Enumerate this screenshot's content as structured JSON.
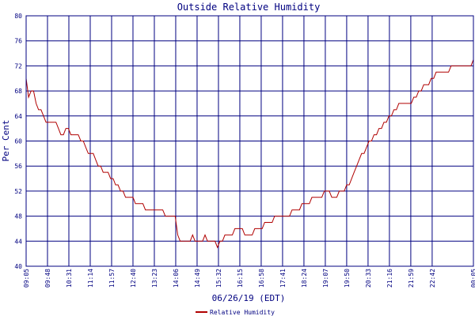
{
  "chart_data": {
    "type": "line",
    "title": "Outside Relative Humidity",
    "xlabel": "06/26/19 (EDT)",
    "ylabel": "Per Cent",
    "ylim": [
      40,
      80
    ],
    "yticks": [
      40,
      44,
      48,
      52,
      56,
      60,
      64,
      68,
      72,
      76,
      80
    ],
    "xlim": [
      "09:05",
      "00:05"
    ],
    "xticks": [
      "09:05",
      "09:48",
      "10:31",
      "11:14",
      "11:57",
      "12:40",
      "13:23",
      "14:06",
      "14:49",
      "15:32",
      "16:15",
      "16:58",
      "17:41",
      "18:24",
      "19:07",
      "19:50",
      "20:33",
      "21:16",
      "21:59",
      "22:42",
      "00:05"
    ],
    "grid": true,
    "legend": "bottom-center",
    "colors": {
      "series": "#b00000",
      "grid": "#000080",
      "text": "#000080"
    },
    "series": [
      {
        "name": "Relative Humidity",
        "x": [
          "09:05",
          "09:10",
          "09:15",
          "09:20",
          "09:25",
          "09:30",
          "09:35",
          "09:40",
          "09:45",
          "09:50",
          "09:55",
          "10:00",
          "10:05",
          "10:10",
          "10:15",
          "10:20",
          "10:25",
          "10:30",
          "10:35",
          "10:40",
          "10:45",
          "10:50",
          "10:55",
          "11:00",
          "11:05",
          "11:10",
          "11:15",
          "11:20",
          "11:25",
          "11:30",
          "11:35",
          "11:40",
          "11:45",
          "11:50",
          "11:55",
          "12:00",
          "12:05",
          "12:10",
          "12:15",
          "12:20",
          "12:25",
          "12:30",
          "12:35",
          "12:40",
          "12:45",
          "12:50",
          "12:55",
          "13:00",
          "13:05",
          "13:10",
          "13:15",
          "13:20",
          "13:25",
          "13:30",
          "13:35",
          "13:40",
          "13:45",
          "13:50",
          "13:55",
          "14:00",
          "14:05",
          "14:10",
          "14:15",
          "14:20",
          "14:25",
          "14:30",
          "14:35",
          "14:40",
          "14:45",
          "14:50",
          "14:55",
          "15:00",
          "15:05",
          "15:10",
          "15:15",
          "15:20",
          "15:25",
          "15:30",
          "15:35",
          "15:40",
          "15:45",
          "15:50",
          "15:55",
          "16:00",
          "16:05",
          "16:10",
          "16:15",
          "16:20",
          "16:25",
          "16:30",
          "16:35",
          "16:40",
          "16:45",
          "16:50",
          "16:55",
          "17:00",
          "17:05",
          "17:10",
          "17:15",
          "17:20",
          "17:25",
          "17:30",
          "17:35",
          "17:40",
          "17:45",
          "17:50",
          "17:55",
          "18:00",
          "18:05",
          "18:10",
          "18:15",
          "18:20",
          "18:25",
          "18:30",
          "18:35",
          "18:40",
          "18:45",
          "18:50",
          "18:55",
          "19:00",
          "19:05",
          "19:10",
          "19:15",
          "19:20",
          "19:25",
          "19:30",
          "19:35",
          "19:40",
          "19:45",
          "19:50",
          "19:55",
          "20:00",
          "20:05",
          "20:10",
          "20:15",
          "20:20",
          "20:25",
          "20:30",
          "20:35",
          "20:40",
          "20:45",
          "20:50",
          "20:55",
          "21:00",
          "21:05",
          "21:10",
          "21:15",
          "21:20",
          "21:25",
          "21:30",
          "21:35",
          "21:40",
          "21:45",
          "21:50",
          "21:55",
          "22:00",
          "22:05",
          "22:10",
          "22:15",
          "22:20",
          "22:25",
          "22:30",
          "22:35",
          "22:40",
          "22:45",
          "22:50",
          "22:55",
          "23:00",
          "23:05",
          "23:10",
          "23:15",
          "23:20",
          "23:25",
          "23:30",
          "23:35",
          "23:40",
          "23:45",
          "23:50",
          "23:55",
          "00:00",
          "00:05"
        ],
        "values": [
          70,
          67,
          68,
          68,
          66,
          65,
          65,
          64,
          63,
          63,
          63,
          63,
          63,
          62,
          61,
          61,
          62,
          62,
          61,
          61,
          61,
          61,
          60,
          60,
          59,
          58,
          58,
          58,
          57,
          56,
          56,
          55,
          55,
          55,
          54,
          54,
          53,
          53,
          52,
          52,
          51,
          51,
          51,
          51,
          50,
          50,
          50,
          50,
          49,
          49,
          49,
          49,
          49,
          49,
          49,
          49,
          48,
          48,
          48,
          48,
          48,
          45,
          44,
          44,
          44,
          44,
          44,
          45,
          44,
          44,
          44,
          44,
          45,
          44,
          44,
          44,
          44,
          43,
          44,
          44,
          45,
          45,
          45,
          45,
          46,
          46,
          46,
          46,
          45,
          45,
          45,
          45,
          46,
          46,
          46,
          46,
          47,
          47,
          47,
          47,
          48,
          48,
          48,
          48,
          48,
          48,
          48,
          49,
          49,
          49,
          49,
          50,
          50,
          50,
          50,
          51,
          51,
          51,
          51,
          51,
          52,
          52,
          52,
          51,
          51,
          51,
          52,
          52,
          52,
          53,
          53,
          54,
          55,
          56,
          57,
          58,
          58,
          59,
          60,
          60,
          61,
          61,
          62,
          62,
          63,
          63,
          64,
          64,
          65,
          65,
          66,
          66,
          66,
          66,
          66,
          66,
          67,
          67,
          68,
          68,
          69,
          69,
          69,
          70,
          70,
          71,
          71,
          71,
          71,
          71,
          71,
          72,
          72,
          72,
          72,
          72,
          72,
          72,
          72,
          72,
          73
        ]
      }
    ]
  }
}
